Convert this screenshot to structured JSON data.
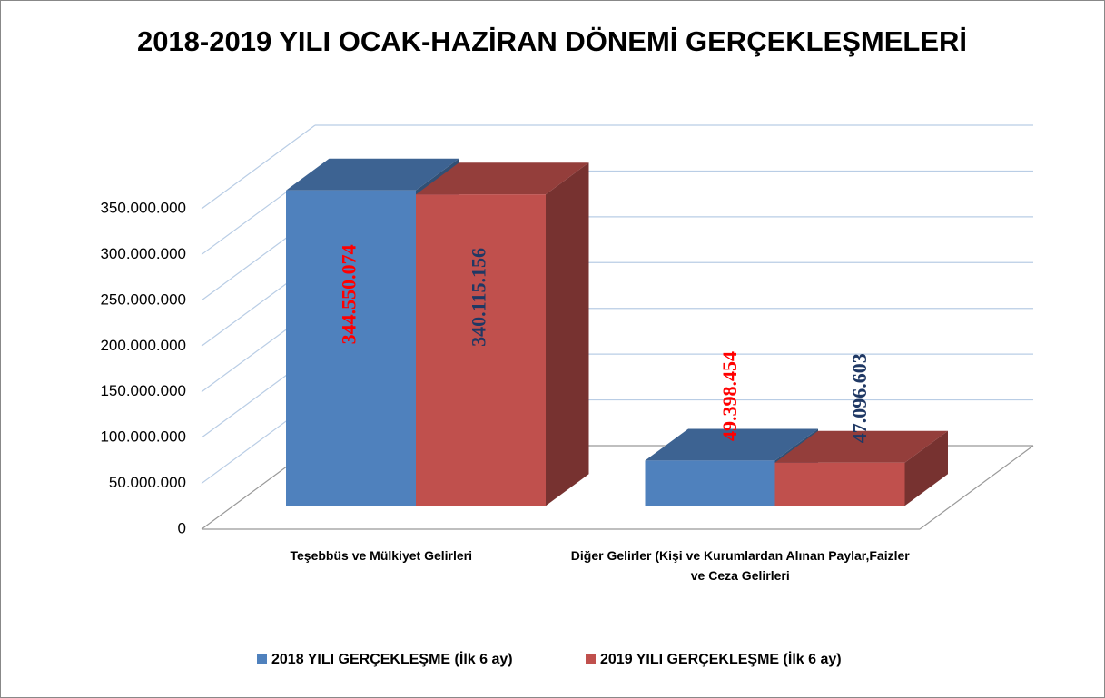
{
  "chart_data": {
    "type": "bar3d",
    "title": "2018-2019 YILI OCAK-HAZİRAN DÖNEMİ GERÇEKLEŞMELERİ",
    "categories": [
      "Teşebbüs ve Mülkiyet Gelirleri",
      "Diğer Gelirler (Kişi ve Kurumlardan Alınan Paylar,Faizler ve Ceza Gelirleri"
    ],
    "series": [
      {
        "name": "2018 YILI GERÇEKLEŞME (İlk 6 ay)",
        "color": "#4f81bd",
        "value_label_color": "#ff0000",
        "values": [
          344550074,
          49398454
        ],
        "value_labels": [
          "344.550.074",
          "49.398.454"
        ]
      },
      {
        "name": "2019 YILI GERÇEKLEŞME (İlk 6 ay)",
        "color": "#c0504d",
        "value_label_color": "#1f3864",
        "values": [
          340115156,
          47096603
        ],
        "value_labels": [
          "340.115.156",
          "47.096.603"
        ]
      }
    ],
    "ylim": [
      0,
      350000000
    ],
    "yticks": [
      0,
      {
        "value": 50000000,
        "label": "50.000.000"
      },
      {
        "value": 100000000,
        "label": "100.000.000"
      },
      {
        "value": 150000000,
        "label": "150.000.000"
      },
      {
        "value": 200000000,
        "label": "200.000.000"
      },
      {
        "value": 250000000,
        "label": "250.000.000"
      },
      {
        "value": 300000000,
        "label": "300.000.000"
      },
      {
        "value": 350000000,
        "label": "350.000.000"
      }
    ],
    "grid": true,
    "legend": "bottom"
  }
}
